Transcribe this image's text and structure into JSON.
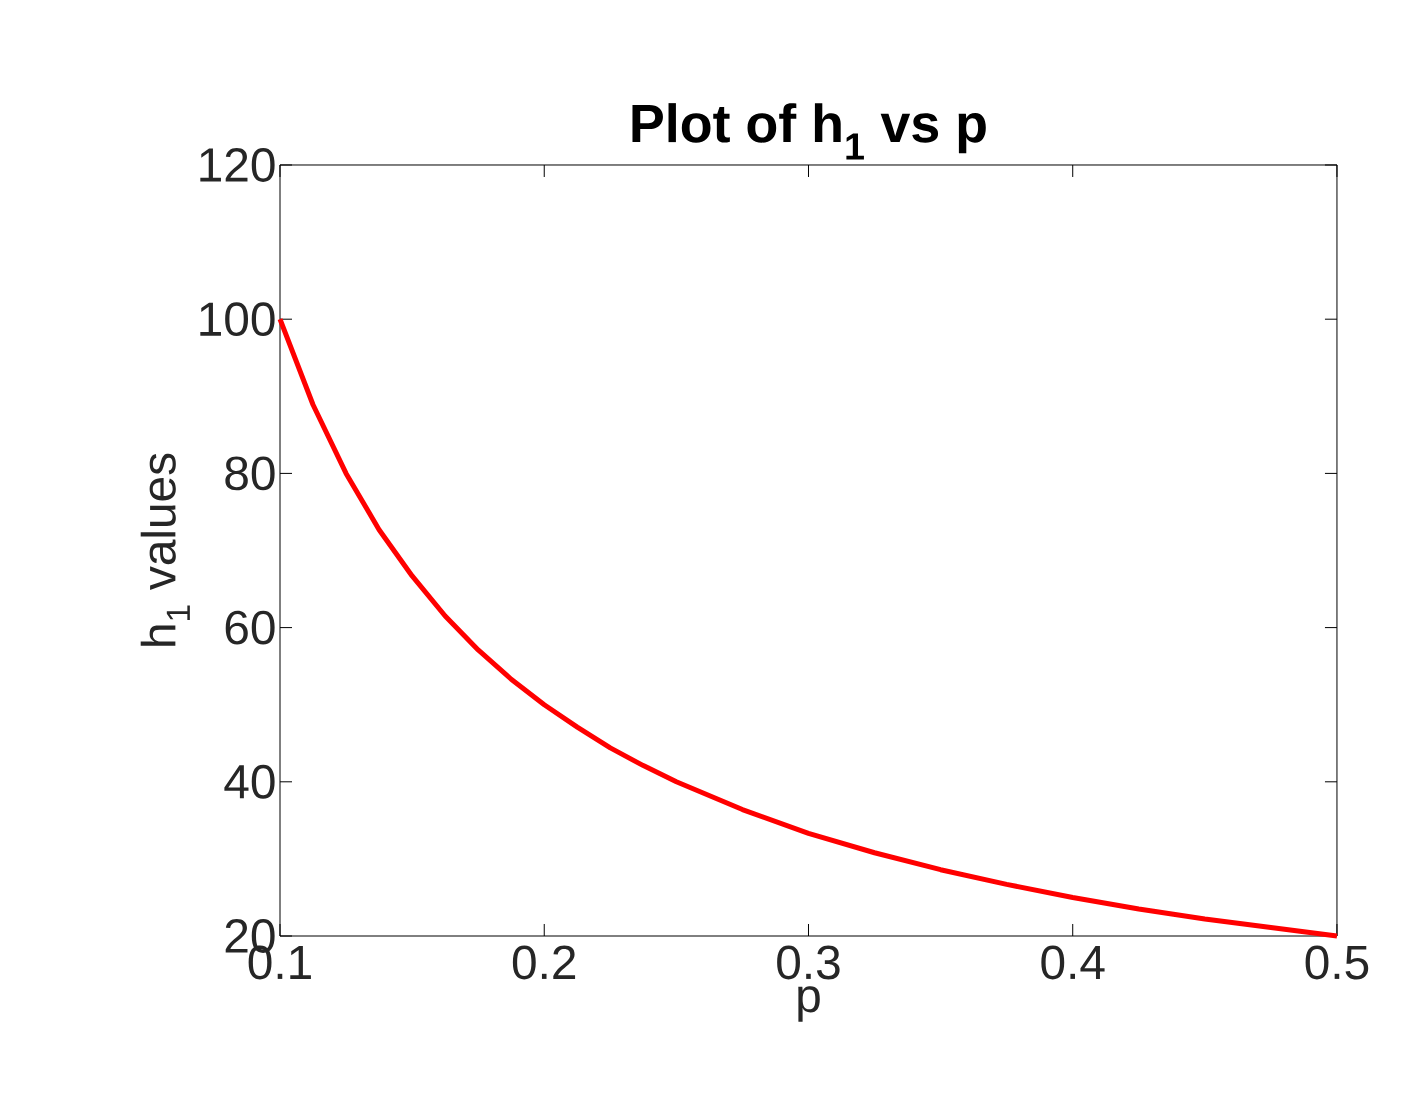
{
  "chart_data": {
    "type": "line",
    "title": "**Plot of h$_{1}$ vs p**",
    "xlabel": "p",
    "ylabel": "h$_{1}$ values",
    "x": [
      0.1,
      0.1125,
      0.125,
      0.1375,
      0.15,
      0.1625,
      0.175,
      0.1875,
      0.2,
      0.2125,
      0.225,
      0.2375,
      0.25,
      0.275,
      0.3,
      0.325,
      0.35,
      0.375,
      0.4,
      0.425,
      0.45,
      0.475,
      0.5
    ],
    "series": [
      {
        "color": "#ff0000",
        "values": [
          100,
          88.9,
          80,
          72.7,
          66.7,
          61.5,
          57.1,
          53.3,
          50,
          47.1,
          44.4,
          42.1,
          40,
          36.4,
          33.3,
          30.8,
          28.6,
          26.7,
          25,
          23.5,
          22.2,
          21.1,
          20
        ]
      }
    ],
    "xlim": [
      0.1,
      0.5
    ],
    "ylim": [
      20,
      120
    ],
    "xticks": [
      0.1,
      0.2,
      0.3,
      0.4,
      0.5
    ],
    "yticks": [
      20,
      40,
      60,
      80,
      100,
      120
    ],
    "grid": false,
    "marker": "none",
    "line_style": "solid"
  }
}
